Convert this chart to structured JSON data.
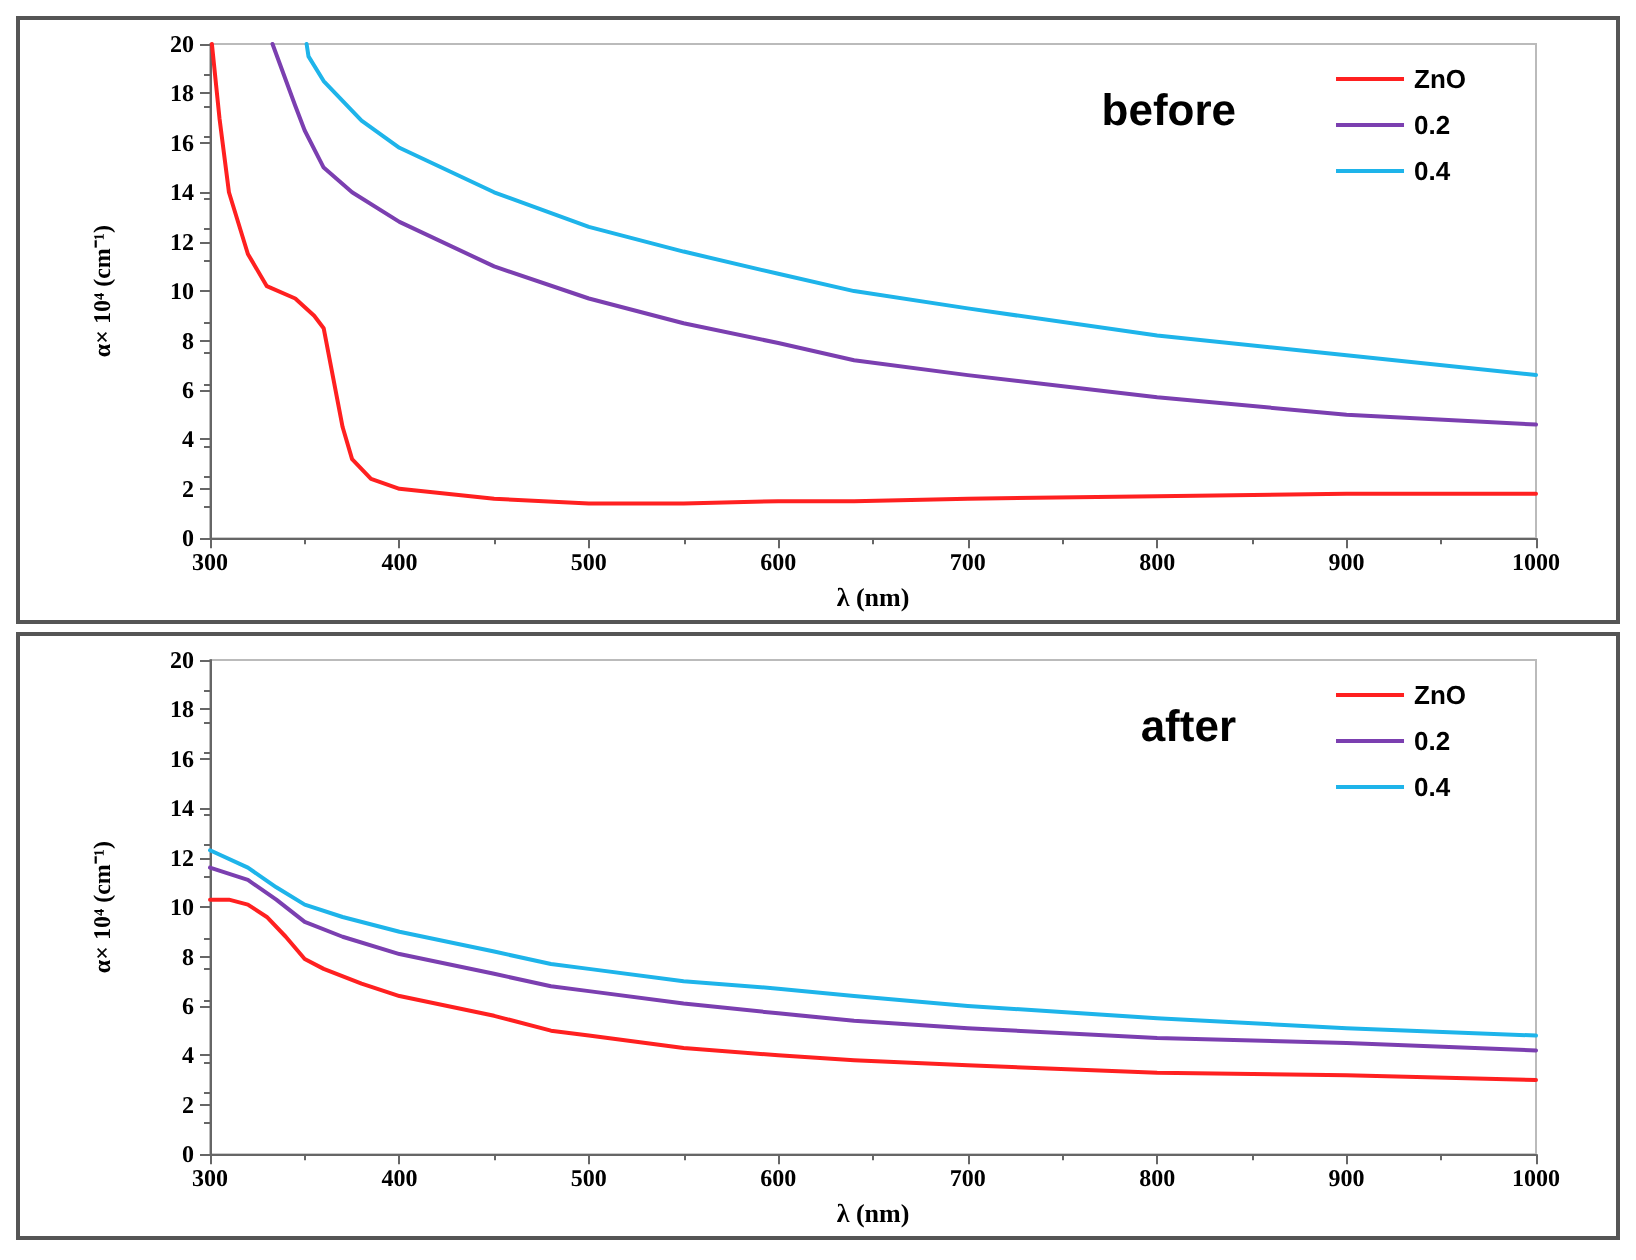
{
  "chart_data": [
    {
      "type": "line",
      "xlabel": "λ (nm)",
      "ylabel": "α× 10⁴ (cm⁻¹)",
      "xlim": [
        300,
        1000
      ],
      "ylim": [
        0,
        20
      ],
      "xticks": [
        300,
        400,
        500,
        600,
        700,
        800,
        900,
        1000
      ],
      "yticks": [
        0,
        2,
        4,
        6,
        8,
        10,
        12,
        14,
        16,
        18,
        20
      ],
      "grid": false,
      "legend": "top right",
      "marker": "none",
      "line_style": "solid",
      "annotations": [
        "before"
      ],
      "series": [
        {
          "name": "ZnO",
          "color": "#ff2020",
          "x": [
            301,
            305,
            310,
            320,
            330,
            345,
            355,
            360,
            365,
            370,
            375,
            385,
            400,
            450,
            500,
            550,
            600,
            640,
            700,
            800,
            900,
            1000
          ],
          "values": [
            20,
            17,
            14,
            11.5,
            10.2,
            9.7,
            9.0,
            8.5,
            6.5,
            4.5,
            3.2,
            2.4,
            2.0,
            1.6,
            1.4,
            1.4,
            1.5,
            1.5,
            1.6,
            1.7,
            1.8,
            1.8
          ]
        },
        {
          "name": "0.2",
          "color": "#7b3fb0",
          "x": [
            333,
            345,
            350,
            360,
            375,
            400,
            450,
            500,
            550,
            600,
            640,
            700,
            800,
            900,
            1000
          ],
          "values": [
            20,
            17.5,
            16.5,
            15,
            14,
            12.8,
            11,
            9.7,
            8.7,
            7.9,
            7.2,
            6.6,
            5.7,
            5.0,
            4.6
          ]
        },
        {
          "name": "0.4",
          "color": "#1eb4ea",
          "x": [
            351,
            352,
            360,
            380,
            400,
            450,
            500,
            550,
            600,
            640,
            700,
            800,
            900,
            1000
          ],
          "values": [
            20,
            19.5,
            18.5,
            16.9,
            15.8,
            14,
            12.6,
            11.6,
            10.7,
            10.0,
            9.3,
            8.2,
            7.4,
            6.6
          ]
        }
      ]
    },
    {
      "type": "line",
      "xlabel": "λ (nm)",
      "ylabel": "α× 10⁴ (cm⁻¹)",
      "xlim": [
        300,
        1000
      ],
      "ylim": [
        0,
        20
      ],
      "xticks": [
        300,
        400,
        500,
        600,
        700,
        800,
        900,
        1000
      ],
      "yticks": [
        0,
        2,
        4,
        6,
        8,
        10,
        12,
        14,
        16,
        18,
        20
      ],
      "grid": false,
      "legend": "top right",
      "marker": "none",
      "line_style": "solid",
      "annotations": [
        "after"
      ],
      "series": [
        {
          "name": "ZnO",
          "color": "#ff2020",
          "x": [
            300,
            310,
            320,
            330,
            340,
            350,
            360,
            380,
            400,
            450,
            480,
            500,
            550,
            600,
            640,
            700,
            800,
            900,
            1000
          ],
          "values": [
            10.3,
            10.3,
            10.1,
            9.6,
            8.8,
            7.9,
            7.5,
            6.9,
            6.4,
            5.6,
            5.0,
            4.8,
            4.3,
            4.0,
            3.8,
            3.6,
            3.3,
            3.2,
            3.0
          ]
        },
        {
          "name": "0.2",
          "color": "#7b3fb0",
          "x": [
            300,
            320,
            335,
            350,
            370,
            400,
            450,
            480,
            500,
            550,
            600,
            640,
            700,
            800,
            900,
            1000
          ],
          "values": [
            11.6,
            11.1,
            10.3,
            9.4,
            8.8,
            8.1,
            7.3,
            6.8,
            6.6,
            6.1,
            5.7,
            5.4,
            5.1,
            4.7,
            4.5,
            4.2
          ]
        },
        {
          "name": "0.4",
          "color": "#1eb4ea",
          "x": [
            300,
            320,
            335,
            350,
            370,
            400,
            450,
            480,
            500,
            550,
            600,
            640,
            700,
            800,
            900,
            1000
          ],
          "values": [
            12.3,
            11.6,
            10.8,
            10.1,
            9.6,
            9.0,
            8.2,
            7.7,
            7.5,
            7.0,
            6.7,
            6.4,
            6.0,
            5.5,
            5.1,
            4.8
          ]
        }
      ]
    }
  ]
}
